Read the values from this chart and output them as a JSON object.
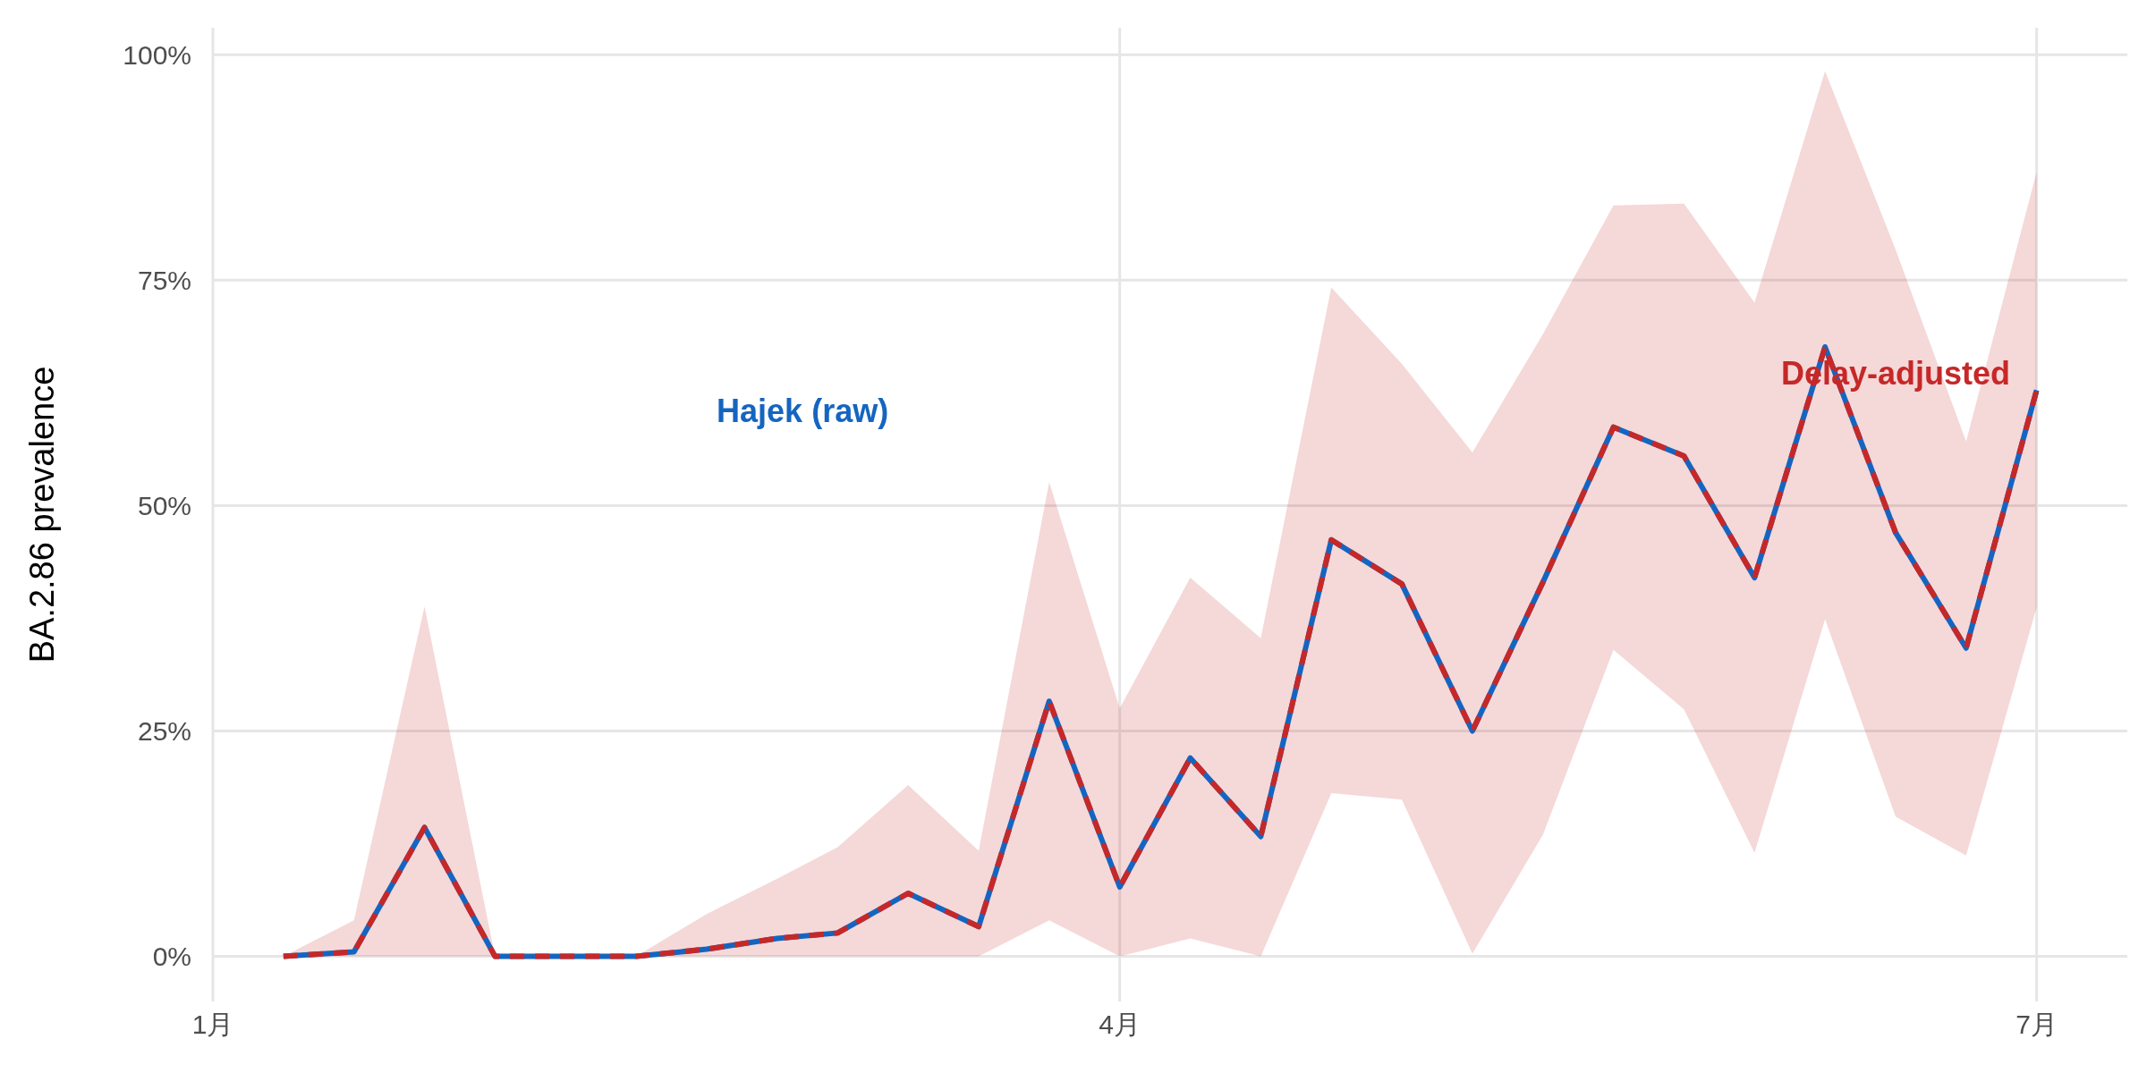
{
  "chart_data": {
    "type": "line",
    "ylabel": "BA.2.86 prevalence",
    "x": [
      "--01-08",
      "--01-15",
      "--01-22",
      "--01-29",
      "--02-05",
      "--02-12",
      "--02-19",
      "--02-26",
      "--03-04",
      "--03-11",
      "--03-18",
      "--03-25",
      "--04-01",
      "--04-08",
      "--04-15",
      "--04-22",
      "--04-29",
      "--05-06",
      "--05-13",
      "--05-20",
      "--05-27",
      "--06-03",
      "--06-10",
      "--06-17",
      "--06-24",
      "--07-01"
    ],
    "series": [
      {
        "name": "Hajek (raw)",
        "color": "#1565c0",
        "line_style": "solid",
        "values": [
          0,
          0.5,
          14.3,
          0,
          0,
          0,
          0.8,
          2,
          2.6,
          7,
          3.3,
          28.3,
          7.7,
          22,
          13.3,
          46.2,
          41.3,
          25,
          41.5,
          58.7,
          55.5,
          42,
          67.6,
          47,
          34.2,
          62.8
        ]
      },
      {
        "name": "Delay-adjusted",
        "color": "#c62828",
        "line_style": "dashed",
        "values": [
          0,
          0.5,
          14.3,
          0,
          0,
          0,
          0.8,
          2,
          2.6,
          7,
          3.3,
          28.3,
          7.7,
          22,
          13.3,
          46.2,
          41.3,
          25,
          41.5,
          58.7,
          55.5,
          42,
          67.6,
          47,
          34.2,
          62.8
        ],
        "lower": [
          0,
          0,
          0,
          0,
          0,
          0,
          0,
          0,
          0,
          0,
          0,
          4,
          0,
          2,
          0,
          18.1,
          17.4,
          0.3,
          13.5,
          34,
          27.4,
          11.5,
          37.4,
          15.5,
          11.2,
          38.7
        ],
        "upper": [
          0,
          4,
          38.8,
          0,
          0,
          0,
          4.7,
          8.6,
          12.1,
          19,
          11.7,
          52.6,
          27.5,
          42,
          35.3,
          74.2,
          65.7,
          55.9,
          69,
          83.3,
          83.5,
          72.5,
          98.2,
          78.4,
          57.1,
          87
        ]
      }
    ],
    "xlim": [
      "--01-01",
      "--07-10"
    ],
    "xticks": [
      {
        "value": "--01-01",
        "label": "1月"
      },
      {
        "value": "--04-01",
        "label": "4月"
      },
      {
        "value": "--07-01",
        "label": "7月"
      }
    ],
    "ylim": [
      -5,
      103
    ],
    "yticks": [
      {
        "value": 0,
        "label": "0%"
      },
      {
        "value": 25,
        "label": "25%"
      },
      {
        "value": 50,
        "label": "50%"
      },
      {
        "value": 75,
        "label": "75%"
      },
      {
        "value": 100,
        "label": "100%"
      }
    ],
    "grid": true
  }
}
